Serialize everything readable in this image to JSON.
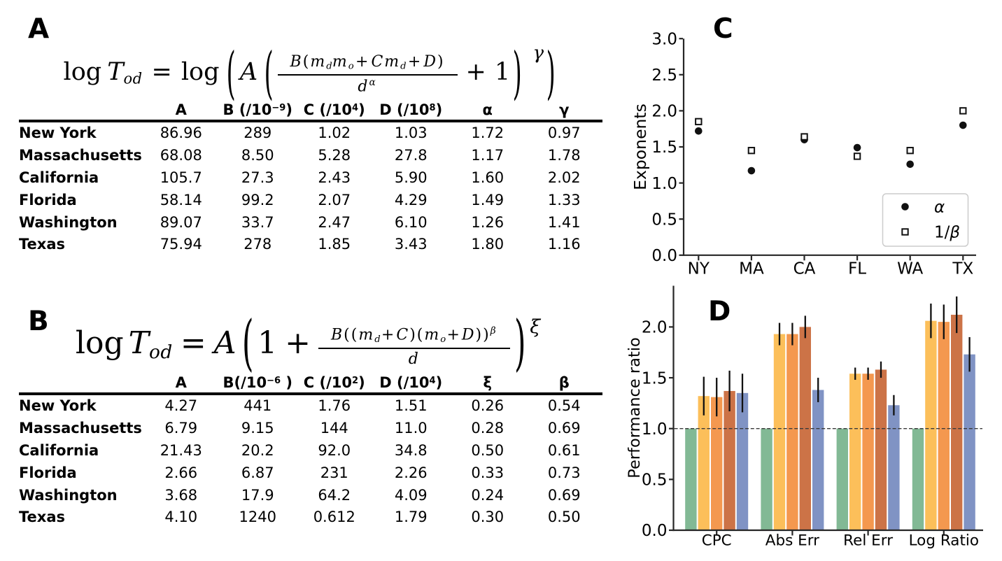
{
  "panels": {
    "a": {
      "label": "A"
    },
    "b": {
      "label": "B"
    },
    "c": {
      "label": "C"
    },
    "d": {
      "label": "D"
    }
  },
  "equations": {
    "a": {
      "plain": "log T_od = log ( A ( B(m_d m_o + C m_d + D) / d^α + 1 )^γ )",
      "tokens": [
        {
          "t": "rm",
          "v": "log"
        },
        {
          "t": "sp",
          "w": 8
        },
        {
          "t": "it",
          "v": "T"
        },
        {
          "t": "sb",
          "v": "od"
        },
        {
          "t": "sp",
          "w": 13
        },
        {
          "t": "rm",
          "v": "="
        },
        {
          "t": "sp",
          "w": 13
        },
        {
          "t": "rm",
          "v": "log"
        },
        {
          "t": "sp",
          "w": 9
        },
        {
          "t": "paren",
          "v": "(",
          "fs": 1.2,
          "sx": 0.8,
          "sy": 1.92
        },
        {
          "t": "sp",
          "w": 4
        },
        {
          "t": "it",
          "v": "A"
        },
        {
          "t": "sp",
          "w": 8
        },
        {
          "t": "paren",
          "v": "(",
          "fs": 1.2,
          "sx": 0.8,
          "sy": 1.92
        },
        {
          "t": "sp",
          "w": 4
        },
        {
          "t": "frac",
          "ls": 2,
          "dy": 2,
          "num": [
            {
              "t": "it",
              "v": "B"
            },
            {
              "t": "rm",
              "v": "("
            },
            {
              "t": "it",
              "v": "m"
            },
            {
              "t": "sb",
              "v": "d"
            },
            {
              "t": "it",
              "v": "m"
            },
            {
              "t": "sb",
              "v": "o"
            },
            {
              "t": "sp",
              "w": 2
            },
            {
              "t": "rm",
              "v": "+"
            },
            {
              "t": "sp",
              "w": 2
            },
            {
              "t": "it",
              "v": "C"
            },
            {
              "t": "it",
              "v": "m"
            },
            {
              "t": "sb",
              "v": "d"
            },
            {
              "t": "sp",
              "w": 2
            },
            {
              "t": "rm",
              "v": "+"
            },
            {
              "t": "sp",
              "w": 2
            },
            {
              "t": "it",
              "v": "D"
            },
            {
              "t": "rm",
              "v": ")"
            }
          ],
          "den": [
            {
              "t": "it",
              "v": "d"
            },
            {
              "t": "supv",
              "v": "α"
            }
          ]
        },
        {
          "t": "sp",
          "w": 12
        },
        {
          "t": "rm",
          "v": "+"
        },
        {
          "t": "sp",
          "w": 12
        },
        {
          "t": "rm",
          "v": "1"
        },
        {
          "t": "sp",
          "w": 2
        },
        {
          "t": "paren",
          "v": ")",
          "fs": 1.2,
          "sx": 0.8,
          "sy": 1.92
        },
        {
          "t": "psup",
          "v": "γ",
          "fs": 26,
          "dy": -31,
          "ml": 14,
          "mr": 2
        },
        {
          "t": "paren",
          "v": ")",
          "fs": 1.2,
          "sx": 0.8,
          "sy": 1.92
        }
      ]
    },
    "b": {
      "plain": "log T_od = A ( 1 + B((m_d + C)(m_o + D))^β / d )^ξ",
      "tokens": [
        {
          "t": "rm",
          "v": "log"
        },
        {
          "t": "sp",
          "w": 7
        },
        {
          "t": "it",
          "v": "T"
        },
        {
          "t": "sb",
          "v": "od"
        },
        {
          "t": "sp",
          "w": 11
        },
        {
          "t": "rm",
          "v": "="
        },
        {
          "t": "sp",
          "w": 11
        },
        {
          "t": "it",
          "v": "A"
        },
        {
          "t": "sp",
          "w": 6
        },
        {
          "t": "paren",
          "v": "(",
          "fs": 1.2,
          "sx": 0.8,
          "sy": 1.63,
          "ty": -2
        },
        {
          "t": "sp",
          "w": 4
        },
        {
          "t": "rm",
          "v": "1"
        },
        {
          "t": "sp",
          "w": 11
        },
        {
          "t": "rm",
          "v": "+"
        },
        {
          "t": "sp",
          "w": 11
        },
        {
          "t": "frac",
          "ls": 2,
          "dy": 2,
          "num": [
            {
              "t": "it",
              "v": "B"
            },
            {
              "t": "rm",
              "v": "(("
            },
            {
              "t": "it",
              "v": "m"
            },
            {
              "t": "sb",
              "v": "d"
            },
            {
              "t": "sp",
              "w": 1
            },
            {
              "t": "rm",
              "v": "+"
            },
            {
              "t": "sp",
              "w": 1
            },
            {
              "t": "it",
              "v": "C"
            },
            {
              "t": "rm",
              "v": ")("
            },
            {
              "t": "it",
              "v": "m"
            },
            {
              "t": "sb",
              "v": "o"
            },
            {
              "t": "sp",
              "w": 1
            },
            {
              "t": "rm",
              "v": "+"
            },
            {
              "t": "sp",
              "w": 1
            },
            {
              "t": "it",
              "v": "D"
            },
            {
              "t": "rm",
              "v": "))"
            },
            {
              "t": "supv",
              "v": "β"
            }
          ],
          "den": [
            {
              "t": "it",
              "v": "d"
            }
          ]
        },
        {
          "t": "sp",
          "w": 4
        },
        {
          "t": "paren",
          "v": ")",
          "fs": 1.2,
          "sx": 0.8,
          "sy": 1.63,
          "ty": -2
        },
        {
          "t": "psup",
          "v": "ξ",
          "fs": 27,
          "dy": -30,
          "ml": 4,
          "mr": 0
        }
      ]
    }
  },
  "tables": {
    "a": {
      "headers": [
        "",
        "A",
        "B (/10⁻⁹)",
        "C (/10⁴)",
        "D (/10⁸)",
        "α",
        "γ"
      ],
      "rows": [
        [
          "New York",
          "86.96",
          "289",
          "1.02",
          "1.03",
          "1.72",
          "0.97"
        ],
        [
          "Massachusetts",
          "68.08",
          "8.50",
          "5.28",
          "27.8",
          "1.17",
          "1.78"
        ],
        [
          "California",
          "105.7",
          "27.3",
          "2.43",
          "5.90",
          "1.60",
          "2.02"
        ],
        [
          "Florida",
          "58.14",
          "99.2",
          "2.07",
          "4.29",
          "1.49",
          "1.33"
        ],
        [
          "Washington",
          "89.07",
          "33.7",
          "2.47",
          "6.10",
          "1.26",
          "1.41"
        ],
        [
          "Texas",
          "75.94",
          "278",
          "1.85",
          "3.43",
          "1.80",
          "1.16"
        ]
      ]
    },
    "b": {
      "headers": [
        "",
        "A",
        "B(/10⁻⁶ )",
        "C (/10²)",
        "D (/10⁴)",
        "ξ",
        "β"
      ],
      "rows": [
        [
          "New York",
          "4.27",
          "441",
          "1.76",
          "1.51",
          "0.26",
          "0.54"
        ],
        [
          "Massachusetts",
          "6.79",
          "9.15",
          "144",
          "11.0",
          "0.28",
          "0.69"
        ],
        [
          "California",
          "21.43",
          "20.2",
          "92.0",
          "34.8",
          "0.50",
          "0.61"
        ],
        [
          "Florida",
          "2.66",
          "6.87",
          "231",
          "2.26",
          "0.33",
          "0.73"
        ],
        [
          "Washington",
          "3.68",
          "17.9",
          "64.2",
          "4.09",
          "0.24",
          "0.69"
        ],
        [
          "Texas",
          "4.10",
          "1240",
          "0.612",
          "1.79",
          "0.30",
          "0.50"
        ]
      ]
    }
  },
  "chart_data": [
    {
      "id": "exponents-scatter",
      "panel": "C",
      "type": "scatter",
      "categories": [
        "NY",
        "MA",
        "CA",
        "FL",
        "WA",
        "TX"
      ],
      "series": [
        {
          "name": "α",
          "marker": "filled-circle",
          "color": "#111111",
          "values": [
            1.72,
            1.17,
            1.6,
            1.49,
            1.26,
            1.8
          ]
        },
        {
          "name": "1/β",
          "marker": "open-square",
          "color": "#111111",
          "values": [
            1.85,
            1.45,
            1.64,
            1.37,
            1.45,
            2.0
          ]
        }
      ],
      "ylabel": "Exponents",
      "yticks": [
        0.0,
        0.5,
        1.0,
        1.5,
        2.0,
        2.5,
        3.0
      ],
      "ylim": [
        0.0,
        3.0
      ],
      "legend": {
        "position": "lower right",
        "entries": [
          "α",
          "1/β"
        ]
      }
    },
    {
      "id": "performance-bars",
      "panel": "D",
      "type": "bar",
      "categories": [
        "CPC",
        "Abs Err",
        "Rel Err",
        "Log Ratio"
      ],
      "series": [
        {
          "name": "green",
          "color": "#82b995",
          "values": [
            1.0,
            1.0,
            1.0,
            1.0
          ],
          "errors": [
            0,
            0,
            0,
            0
          ]
        },
        {
          "name": "orange-light",
          "color": "#fcbf5a",
          "values": [
            1.32,
            1.93,
            1.54,
            2.06
          ],
          "errors": [
            0.19,
            0.11,
            0.06,
            0.17
          ]
        },
        {
          "name": "orange",
          "color": "#f4984f",
          "values": [
            1.31,
            1.93,
            1.54,
            2.05
          ],
          "errors": [
            0.19,
            0.11,
            0.06,
            0.17
          ]
        },
        {
          "name": "orange-dark",
          "color": "#cc7347",
          "values": [
            1.37,
            2.0,
            1.58,
            2.12
          ],
          "errors": [
            0.2,
            0.11,
            0.08,
            0.18
          ]
        },
        {
          "name": "blue",
          "color": "#8093c4",
          "values": [
            1.35,
            1.38,
            1.23,
            1.73
          ],
          "errors": [
            0.19,
            0.12,
            0.1,
            0.17
          ]
        }
      ],
      "ylabel": "Performance ratio",
      "yticks": [
        0.0,
        0.5,
        1.0,
        1.5,
        2.0
      ],
      "ylim": [
        0.0,
        2.4
      ],
      "reference_line": 1.0,
      "grid": false
    }
  ]
}
